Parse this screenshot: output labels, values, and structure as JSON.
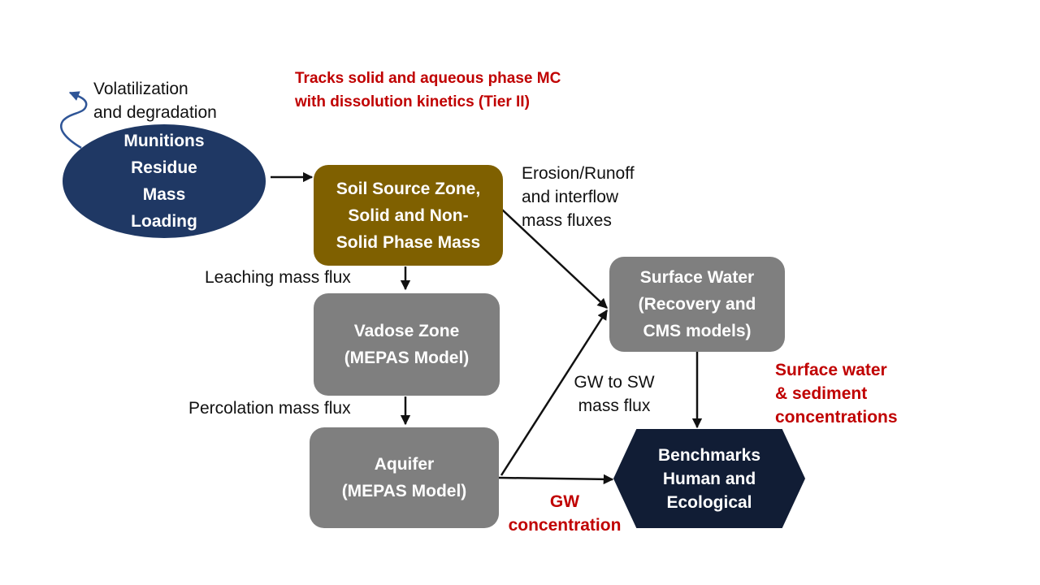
{
  "annotations": {
    "volatilization": [
      "Volatilization",
      "and degradation"
    ],
    "tier_note": [
      "Tracks solid and aqueous phase MC",
      "with dissolution kinetics (Tier II)"
    ],
    "erosion": [
      "Erosion/Runoff",
      "and interflow",
      "mass fluxes"
    ],
    "leaching": "Leaching mass flux",
    "percolation": "Percolation mass flux",
    "gw_to_sw": [
      "GW to SW",
      "mass flux"
    ],
    "surface_output": [
      "Surface water",
      "& sediment",
      "concentrations"
    ],
    "gw_output": [
      "GW",
      "concentration"
    ]
  },
  "nodes": {
    "munitions": [
      "Munitions",
      "Residue",
      "Mass",
      "Loading"
    ],
    "soil_source": [
      "Soil Source Zone,",
      "Solid and Non-",
      "Solid Phase Mass"
    ],
    "vadose": [
      "Vadose Zone",
      "(MEPAS Model)"
    ],
    "aquifer": [
      "Aquifer",
      "(MEPAS Model)"
    ],
    "surface_water": [
      "Surface Water",
      "(Recovery and",
      "CMS models)"
    ],
    "benchmarks": [
      "Benchmarks",
      "Human and",
      "Ecological"
    ]
  },
  "colors": {
    "munitions": "#1f3864",
    "soil_source": "#7f6000",
    "model_box": "#7f7f7f",
    "benchmarks": "#111d35",
    "highlight_text": "#c00000",
    "volatilization_arrow": "#2f5597"
  }
}
